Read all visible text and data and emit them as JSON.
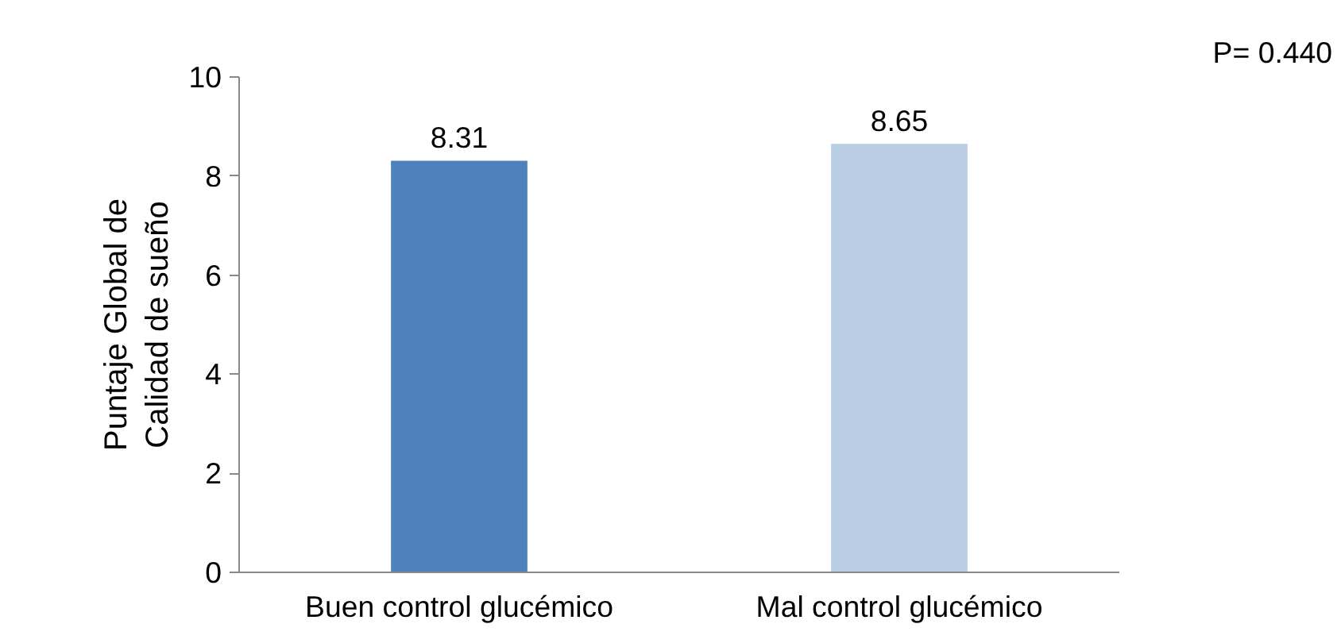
{
  "chart_data": {
    "type": "bar",
    "ylabel": "Puntaje Global de\nCalidad de sueño",
    "categories": [
      "Buen control glucémico",
      "Mal control glucémico"
    ],
    "values": [
      8.31,
      8.65
    ],
    "colors": [
      "#4f81bd",
      "#b9cde5"
    ],
    "ylim": [
      0,
      10
    ],
    "yticks": [
      0,
      2,
      4,
      6,
      8,
      10
    ],
    "grid": false,
    "data_labels": true,
    "annotations": [
      "P= 0.440"
    ]
  }
}
